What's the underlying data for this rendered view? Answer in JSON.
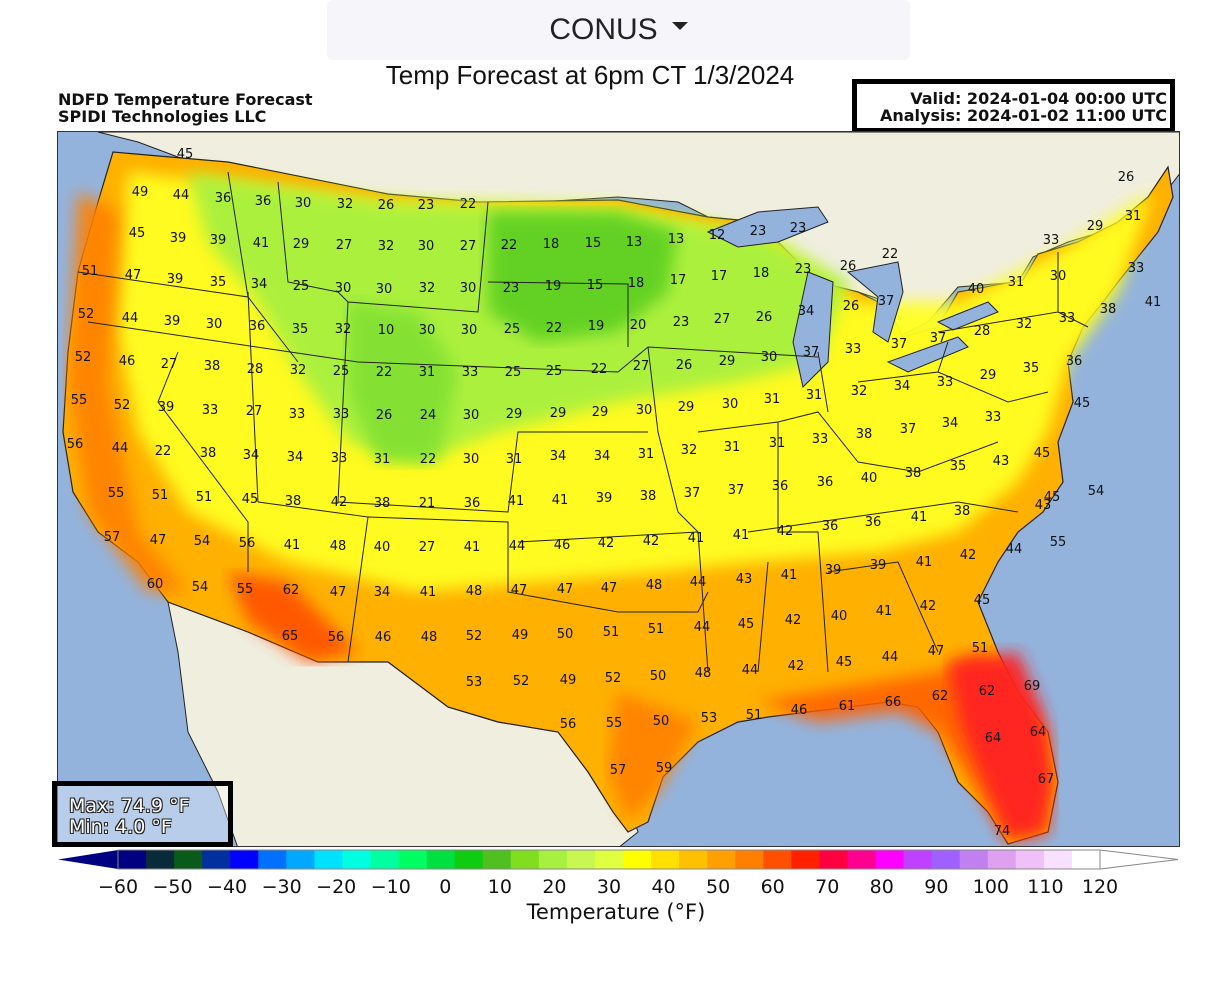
{
  "region_select": {
    "value": "CONUS"
  },
  "page_title": "Temp Forecast at 6pm CT 1/3/2024",
  "header": {
    "line1": "NDFD Temperature Forecast",
    "line2": "SPIDI Technologies LLC"
  },
  "valid_box": {
    "valid": "Valid: 2024-01-04 00:00 UTC",
    "analysis": "Analysis: 2024-01-02 11:00 UTC"
  },
  "minmax": {
    "max": "Max: 74.9 °F",
    "min": "Min: 4.0 °F"
  },
  "colorbar": {
    "label": "Temperature (°F)",
    "min": -60,
    "max": 120,
    "step": 5,
    "tick_labels": [
      "-60",
      "-50",
      "-40",
      "-30",
      "-20",
      "-10",
      "0",
      "10",
      "20",
      "30",
      "40",
      "50",
      "60",
      "70",
      "80",
      "90",
      "100",
      "110",
      "120"
    ],
    "colors": [
      "#000080",
      "#082a3a",
      "#0a5a1a",
      "#0030a0",
      "#0000ff",
      "#0070ff",
      "#00a8ff",
      "#00e0ff",
      "#00ffe0",
      "#00ffa0",
      "#00ff60",
      "#00e040",
      "#10cc10",
      "#50c020",
      "#80dd20",
      "#a8f040",
      "#c8f850",
      "#e0ff40",
      "#ffff00",
      "#ffe000",
      "#ffc000",
      "#ffa000",
      "#ff8000",
      "#ff5000",
      "#ff2000",
      "#ff0040",
      "#ff0090",
      "#ff00ff",
      "#c040ff",
      "#a060ff",
      "#c080f0",
      "#e0a0f0",
      "#f0c0f8",
      "#f8e0ff",
      "#ffffff"
    ]
  },
  "stations": [
    [
      "45",
      127,
      21
    ],
    [
      "49",
      82,
      59
    ],
    [
      "44",
      123,
      62
    ],
    [
      "36",
      165,
      65
    ],
    [
      "36",
      205,
      68
    ],
    [
      "30",
      245,
      70
    ],
    [
      "32",
      287,
      71
    ],
    [
      "26",
      328,
      72
    ],
    [
      "23",
      368,
      72
    ],
    [
      "22",
      410,
      71
    ],
    [
      "45",
      79,
      100
    ],
    [
      "39",
      120,
      105
    ],
    [
      "39",
      160,
      107
    ],
    [
      "41",
      203,
      110
    ],
    [
      "29",
      243,
      111
    ],
    [
      "27",
      286,
      112
    ],
    [
      "32",
      328,
      113
    ],
    [
      "30",
      368,
      113
    ],
    [
      "27",
      410,
      113
    ],
    [
      "22",
      451,
      112
    ],
    [
      "18",
      493,
      111
    ],
    [
      "15",
      535,
      110
    ],
    [
      "13",
      576,
      109
    ],
    [
      "13",
      618,
      106
    ],
    [
      "12",
      659,
      102
    ],
    [
      "23",
      700,
      98
    ],
    [
      "23",
      740,
      95
    ],
    [
      "51",
      32,
      138
    ],
    [
      "47",
      75,
      142
    ],
    [
      "39",
      117,
      146
    ],
    [
      "35",
      160,
      149
    ],
    [
      "34",
      201,
      151
    ],
    [
      "25",
      243,
      153
    ],
    [
      "30",
      285,
      155
    ],
    [
      "30",
      326,
      156
    ],
    [
      "32",
      369,
      155
    ],
    [
      "30",
      410,
      155
    ],
    [
      "23",
      453,
      155
    ],
    [
      "19",
      495,
      153
    ],
    [
      "15",
      537,
      152
    ],
    [
      "18",
      578,
      150
    ],
    [
      "17",
      620,
      147
    ],
    [
      "17",
      661,
      143
    ],
    [
      "18",
      703,
      140
    ],
    [
      "23",
      745,
      136
    ],
    [
      "26",
      790,
      133
    ],
    [
      "22",
      832,
      121
    ],
    [
      "37",
      828,
      168
    ],
    [
      "41",
      1095,
      169
    ],
    [
      "33",
      1078,
      135
    ],
    [
      "29",
      1037,
      93
    ],
    [
      "26",
      1068,
      44
    ],
    [
      "31",
      1075,
      83
    ],
    [
      "30",
      1000,
      143
    ],
    [
      "31",
      958,
      149
    ],
    [
      "40",
      918,
      156
    ],
    [
      "33",
      993,
      107
    ],
    [
      "52",
      28,
      181
    ],
    [
      "44",
      72,
      185
    ],
    [
      "39",
      114,
      188
    ],
    [
      "30",
      156,
      191
    ],
    [
      "36",
      199,
      193
    ],
    [
      "35",
      242,
      196
    ],
    [
      "32",
      285,
      196
    ],
    [
      "10",
      328,
      197
    ],
    [
      "30",
      369,
      197
    ],
    [
      "30",
      411,
      197
    ],
    [
      "25",
      454,
      196
    ],
    [
      "22",
      496,
      195
    ],
    [
      "19",
      538,
      193
    ],
    [
      "20",
      580,
      192
    ],
    [
      "23",
      623,
      189
    ],
    [
      "27",
      664,
      186
    ],
    [
      "26",
      706,
      184
    ],
    [
      "34",
      748,
      178
    ],
    [
      "26",
      793,
      173
    ],
    [
      "37",
      880,
      205
    ],
    [
      "28",
      924,
      198
    ],
    [
      "32",
      966,
      191
    ],
    [
      "33",
      1009,
      185
    ],
    [
      "38",
      1050,
      176
    ],
    [
      "52",
      25,
      224
    ],
    [
      "46",
      69,
      228
    ],
    [
      "27",
      111,
      231
    ],
    [
      "38",
      154,
      233
    ],
    [
      "28",
      197,
      236
    ],
    [
      "32",
      240,
      237
    ],
    [
      "25",
      283,
      238
    ],
    [
      "22",
      326,
      239
    ],
    [
      "31",
      369,
      239
    ],
    [
      "33",
      412,
      239
    ],
    [
      "25",
      455,
      239
    ],
    [
      "25",
      496,
      238
    ],
    [
      "22",
      541,
      236
    ],
    [
      "27",
      583,
      233
    ],
    [
      "26",
      626,
      232
    ],
    [
      "29",
      669,
      228
    ],
    [
      "30",
      711,
      224
    ],
    [
      "37",
      753,
      219
    ],
    [
      "33",
      795,
      216
    ],
    [
      "37",
      841,
      211
    ],
    [
      "34",
      844,
      253
    ],
    [
      "33",
      887,
      249
    ],
    [
      "29",
      930,
      242
    ],
    [
      "35",
      973,
      235
    ],
    [
      "36",
      1016,
      228
    ],
    [
      "55",
      21,
      267
    ],
    [
      "52",
      64,
      272
    ],
    [
      "39",
      108,
      274
    ],
    [
      "33",
      152,
      277
    ],
    [
      "27",
      196,
      278
    ],
    [
      "33",
      239,
      281
    ],
    [
      "33",
      283,
      281
    ],
    [
      "26",
      326,
      282
    ],
    [
      "24",
      370,
      282
    ],
    [
      "30",
      413,
      282
    ],
    [
      "29",
      456,
      281
    ],
    [
      "29",
      500,
      280
    ],
    [
      "29",
      542,
      279
    ],
    [
      "30",
      586,
      277
    ],
    [
      "29",
      628,
      274
    ],
    [
      "30",
      672,
      271
    ],
    [
      "31",
      714,
      266
    ],
    [
      "31",
      756,
      262
    ],
    [
      "32",
      801,
      258
    ],
    [
      "45",
      1024,
      270
    ],
    [
      "33",
      935,
      284
    ],
    [
      "34",
      892,
      290
    ],
    [
      "56",
      17,
      311
    ],
    [
      "44",
      62,
      315
    ],
    [
      "22",
      105,
      318
    ],
    [
      "38",
      150,
      320
    ],
    [
      "34",
      193,
      322
    ],
    [
      "34",
      237,
      324
    ],
    [
      "33",
      281,
      325
    ],
    [
      "31",
      324,
      326
    ],
    [
      "22",
      370,
      326
    ],
    [
      "30",
      413,
      326
    ],
    [
      "31",
      456,
      326
    ],
    [
      "34",
      500,
      323
    ],
    [
      "34",
      544,
      323
    ],
    [
      "31",
      588,
      321
    ],
    [
      "32",
      631,
      317
    ],
    [
      "31",
      674,
      314
    ],
    [
      "31",
      719,
      310
    ],
    [
      "33",
      762,
      306
    ],
    [
      "38",
      806,
      301
    ],
    [
      "37",
      850,
      296
    ],
    [
      "43",
      943,
      328
    ],
    [
      "45",
      984,
      320
    ],
    [
      "35",
      900,
      333
    ],
    [
      "55",
      58,
      360
    ],
    [
      "51",
      102,
      362
    ],
    [
      "51",
      146,
      364
    ],
    [
      "45",
      192,
      366
    ],
    [
      "38",
      235,
      368
    ],
    [
      "42",
      281,
      369
    ],
    [
      "38",
      324,
      370
    ],
    [
      "21",
      369,
      370
    ],
    [
      "36",
      414,
      370
    ],
    [
      "41",
      458,
      368
    ],
    [
      "41",
      502,
      367
    ],
    [
      "39",
      546,
      365
    ],
    [
      "38",
      590,
      363
    ],
    [
      "37",
      634,
      360
    ],
    [
      "37",
      678,
      357
    ],
    [
      "36",
      722,
      353
    ],
    [
      "36",
      767,
      349
    ],
    [
      "40",
      811,
      345
    ],
    [
      "38",
      855,
      340
    ],
    [
      "43",
      985,
      372
    ],
    [
      "45",
      994,
      364
    ],
    [
      "54",
      1038,
      358
    ],
    [
      "38",
      904,
      378
    ],
    [
      "41",
      861,
      384
    ],
    [
      "57",
      54,
      404
    ],
    [
      "47",
      100,
      407
    ],
    [
      "54",
      144,
      408
    ],
    [
      "56",
      189,
      410
    ],
    [
      "41",
      234,
      412
    ],
    [
      "48",
      280,
      413
    ],
    [
      "40",
      324,
      414
    ],
    [
      "27",
      369,
      414
    ],
    [
      "41",
      414,
      414
    ],
    [
      "44",
      459,
      413
    ],
    [
      "46",
      504,
      412
    ],
    [
      "42",
      548,
      410
    ],
    [
      "42",
      593,
      408
    ],
    [
      "41",
      638,
      405
    ],
    [
      "41",
      683,
      402
    ],
    [
      "42",
      727,
      398
    ],
    [
      "36",
      772,
      393
    ],
    [
      "36",
      815,
      389
    ],
    [
      "41",
      866,
      429
    ],
    [
      "42",
      910,
      422
    ],
    [
      "44",
      956,
      416
    ],
    [
      "55",
      1000,
      409
    ],
    [
      "60",
      97,
      451
    ],
    [
      "54",
      142,
      454
    ],
    [
      "55",
      187,
      456
    ],
    [
      "62",
      233,
      457
    ],
    [
      "47",
      280,
      459
    ],
    [
      "34",
      324,
      459
    ],
    [
      "41",
      370,
      459
    ],
    [
      "48",
      416,
      458
    ],
    [
      "47",
      461,
      457
    ],
    [
      "47",
      507,
      456
    ],
    [
      "47",
      551,
      455
    ],
    [
      "48",
      596,
      452
    ],
    [
      "44",
      640,
      449
    ],
    [
      "43",
      686,
      446
    ],
    [
      "41",
      731,
      442
    ],
    [
      "39",
      775,
      437
    ],
    [
      "39",
      820,
      432
    ],
    [
      "45",
      924,
      467
    ],
    [
      "42",
      870,
      473
    ],
    [
      "65",
      232,
      503
    ],
    [
      "56",
      278,
      504
    ],
    [
      "46",
      325,
      504
    ],
    [
      "48",
      371,
      504
    ],
    [
      "52",
      416,
      503
    ],
    [
      "49",
      462,
      502
    ],
    [
      "50",
      507,
      501
    ],
    [
      "51",
      553,
      499
    ],
    [
      "51",
      598,
      496
    ],
    [
      "44",
      644,
      494
    ],
    [
      "45",
      688,
      491
    ],
    [
      "42",
      735,
      487
    ],
    [
      "40",
      781,
      483
    ],
    [
      "41",
      826,
      478
    ],
    [
      "51",
      922,
      515
    ],
    [
      "47",
      878,
      518
    ],
    [
      "44",
      832,
      524
    ],
    [
      "45",
      786,
      529
    ],
    [
      "53",
      416,
      549
    ],
    [
      "52",
      463,
      548
    ],
    [
      "49",
      510,
      547
    ],
    [
      "52",
      555,
      545
    ],
    [
      "50",
      600,
      543
    ],
    [
      "48",
      645,
      540
    ],
    [
      "44",
      692,
      537
    ],
    [
      "42",
      738,
      533
    ],
    [
      "62",
      929,
      558
    ],
    [
      "69",
      974,
      553
    ],
    [
      "62",
      882,
      563
    ],
    [
      "66",
      835,
      569
    ],
    [
      "61",
      789,
      573
    ],
    [
      "56",
      510,
      591
    ],
    [
      "55",
      556,
      590
    ],
    [
      "50",
      603,
      588
    ],
    [
      "53",
      651,
      585
    ],
    [
      "51",
      696,
      582
    ],
    [
      "46",
      741,
      577
    ],
    [
      "64",
      935,
      605
    ],
    [
      "64",
      980,
      599
    ],
    [
      "57",
      560,
      637
    ],
    [
      "59",
      606,
      635
    ],
    [
      "67",
      988,
      646
    ],
    [
      "74",
      944,
      698
    ]
  ]
}
